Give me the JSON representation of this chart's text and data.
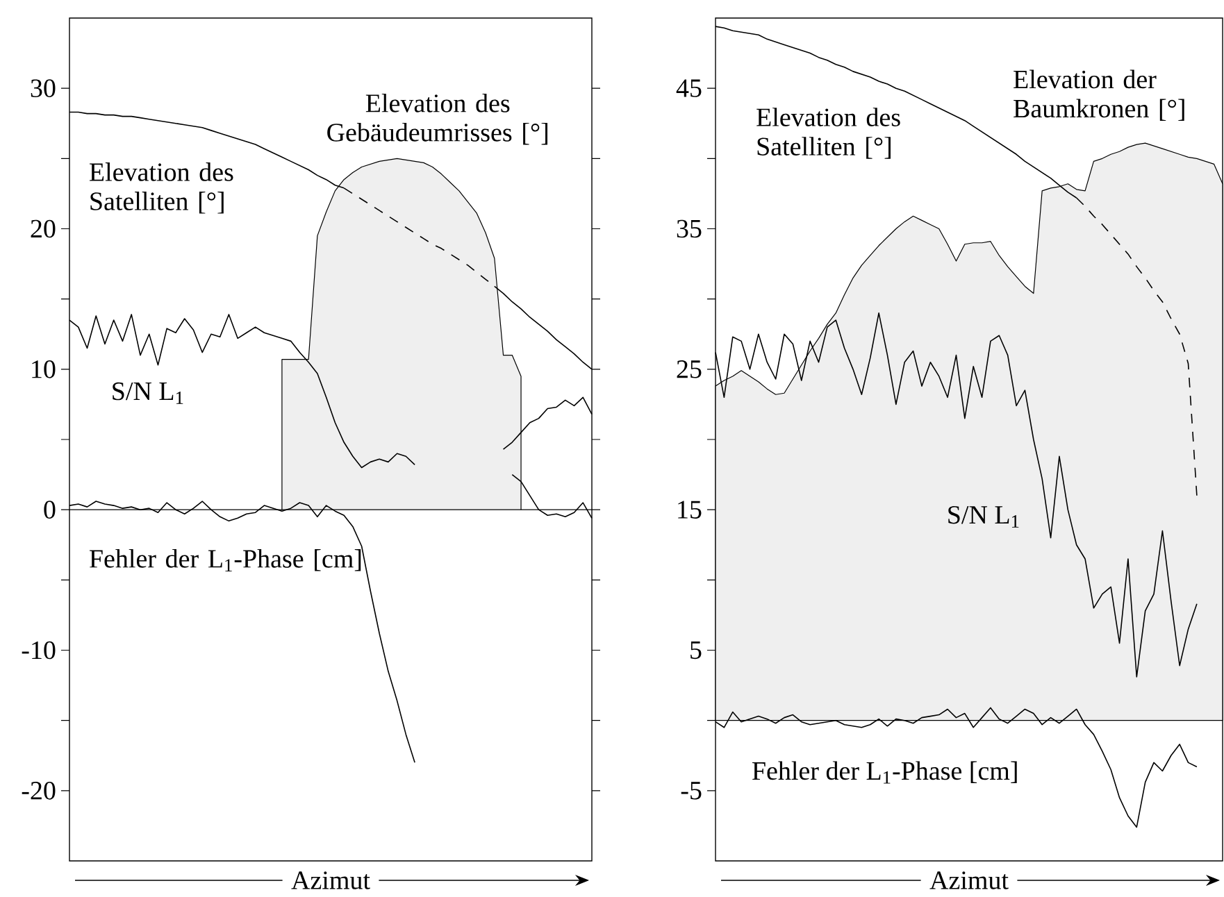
{
  "chart_data": [
    {
      "type": "line",
      "xlabel": "Azimut",
      "ylim": [
        -25,
        35
      ],
      "tick_labels": "y",
      "categories": [
        null,
        null,
        null,
        null,
        null,
        null,
        null,
        null,
        null,
        null,
        null,
        null,
        null,
        null,
        null,
        null,
        null,
        null,
        null,
        null,
        null,
        null,
        null,
        null,
        null,
        null,
        null,
        null,
        null,
        null,
        null,
        null,
        null,
        null,
        null,
        null,
        null,
        null,
        null,
        null,
        null,
        null,
        null,
        null,
        null,
        null,
        null,
        null,
        null,
        null,
        null,
        null,
        null,
        null,
        null,
        null,
        null,
        null,
        null,
        null
      ],
      "yticks": [
        -20,
        {
          "value": -15,
          "label": null
        },
        -10,
        {
          "value": -5,
          "label": null
        },
        0,
        {
          "value": 5,
          "label": null
        },
        10,
        {
          "value": 15,
          "label": null
        },
        20,
        {
          "value": 25,
          "label": null
        },
        30
      ],
      "ref_lines": [
        {
          "axis": "y",
          "value": 0,
          "color": "#000000"
        }
      ],
      "series": [
        {
          "type": "area",
          "name": "Elevation des Gebäudeumrisses [°]",
          "color": "#efefef",
          "values": [
            null,
            null,
            null,
            null,
            null,
            null,
            null,
            null,
            null,
            null,
            null,
            null,
            null,
            null,
            null,
            null,
            null,
            null,
            null,
            null,
            null,
            null,
            null,
            null,
            10.7,
            10.7,
            10.7,
            10.7,
            19.5,
            21.2,
            22.7,
            23.5,
            24.0,
            24.4,
            24.6,
            24.8,
            24.9,
            25.0,
            24.9,
            24.8,
            24.7,
            24.4,
            23.9,
            23.3,
            22.7,
            21.9,
            21.1,
            19.7,
            17.9,
            11.0,
            11.0,
            9.5,
            null,
            null,
            null,
            null,
            null,
            null,
            null,
            null
          ]
        },
        {
          "name": "Elevation des Satelliten [°]",
          "color": "#000000",
          "line_style": "solid",
          "values": [
            28.3,
            28.3,
            28.2,
            28.2,
            28.1,
            28.1,
            28.0,
            28.0,
            27.9,
            27.8,
            27.7,
            27.6,
            27.5,
            27.4,
            27.3,
            27.2,
            27.0,
            26.8,
            26.6,
            26.4,
            26.2,
            26.0,
            25.7,
            25.4,
            25.1,
            24.8,
            24.5,
            24.2,
            23.8,
            23.5,
            23.1,
            22.9,
            null,
            null,
            null,
            null,
            null,
            null,
            null,
            null,
            null,
            null,
            null,
            null,
            null,
            null,
            null,
            null,
            null,
            null,
            null,
            null,
            null,
            null,
            null,
            null,
            null,
            null,
            null,
            null
          ]
        },
        {
          "color": "#000000",
          "line_style": "dashed",
          "values": [
            null,
            null,
            null,
            null,
            null,
            null,
            null,
            null,
            null,
            null,
            null,
            null,
            null,
            null,
            null,
            null,
            null,
            null,
            null,
            null,
            null,
            null,
            null,
            null,
            null,
            null,
            null,
            null,
            null,
            null,
            null,
            22.9,
            22.5,
            22.1,
            21.7,
            21.3,
            20.9,
            20.5,
            20.1,
            19.7,
            19.3,
            18.9,
            18.6,
            18.2,
            17.8,
            17.4,
            16.9,
            16.4,
            15.9,
            null,
            null,
            null,
            null,
            null,
            null,
            null,
            null,
            null,
            null,
            null
          ]
        },
        {
          "color": "#000000",
          "line_style": "solid",
          "values": [
            null,
            null,
            null,
            null,
            null,
            null,
            null,
            null,
            null,
            null,
            null,
            null,
            null,
            null,
            null,
            null,
            null,
            null,
            null,
            null,
            null,
            null,
            null,
            null,
            null,
            null,
            null,
            null,
            null,
            null,
            null,
            null,
            null,
            null,
            null,
            null,
            null,
            null,
            null,
            null,
            null,
            null,
            null,
            null,
            null,
            null,
            null,
            null,
            15.9,
            15.4,
            14.8,
            14.3,
            13.7,
            13.2,
            12.7,
            12.1,
            11.6,
            11.1,
            10.5,
            10.0
          ]
        },
        {
          "name": "S/N L$_{1}$",
          "color": "#000000",
          "line_style": "solid",
          "values": [
            13.5,
            13.0,
            11.5,
            13.8,
            11.8,
            13.5,
            12.0,
            13.9,
            11.0,
            12.5,
            10.3,
            12.9,
            12.6,
            13.6,
            12.8,
            11.2,
            12.5,
            12.3,
            13.9,
            12.2,
            12.6,
            13.0,
            12.6,
            12.4,
            12.2,
            12.0,
            11.2,
            10.5,
            9.7,
            8.0,
            6.2,
            4.8,
            3.8,
            3.0,
            3.4,
            3.6,
            3.4,
            4.0,
            3.8,
            3.2,
            null,
            null,
            null,
            null,
            null,
            null,
            null,
            null,
            null,
            null,
            null,
            null,
            null,
            null,
            null,
            null,
            null,
            null,
            null,
            null
          ]
        },
        {
          "color": "#000000",
          "line_style": "solid",
          "values": [
            null,
            null,
            null,
            null,
            null,
            null,
            null,
            null,
            null,
            null,
            null,
            null,
            null,
            null,
            null,
            null,
            null,
            null,
            null,
            null,
            null,
            null,
            null,
            null,
            null,
            null,
            null,
            null,
            null,
            null,
            null,
            null,
            null,
            null,
            null,
            null,
            null,
            null,
            null,
            null,
            null,
            null,
            null,
            null,
            null,
            null,
            null,
            null,
            null,
            4.3,
            4.8,
            5.5,
            6.2,
            6.5,
            7.2,
            7.3,
            7.8,
            7.4,
            8.0,
            6.8
          ]
        },
        {
          "name": "Fehler der L$_{1}$-Phase [cm]",
          "color": "#000000",
          "line_style": "solid",
          "values": [
            0.3,
            0.4,
            0.2,
            0.6,
            0.4,
            0.3,
            0.1,
            0.2,
            0.0,
            0.1,
            -0.2,
            0.5,
            0.0,
            -0.3,
            0.1,
            0.6,
            0.0,
            -0.5,
            -0.8,
            -0.6,
            -0.3,
            -0.2,
            0.3,
            0.1,
            -0.1,
            0.1,
            0.5,
            0.3,
            -0.5,
            0.3,
            -0.1,
            -0.4,
            -1.2,
            -2.6,
            -5.8,
            -8.8,
            -11.5,
            -13.6,
            -16.0,
            -18.0,
            null,
            null,
            null,
            null,
            null,
            null,
            null,
            null,
            null,
            null,
            null,
            null,
            null,
            null,
            null,
            null,
            null,
            null,
            null,
            null
          ]
        },
        {
          "color": "#000000",
          "line_style": "solid",
          "values": [
            null,
            null,
            null,
            null,
            null,
            null,
            null,
            null,
            null,
            null,
            null,
            null,
            null,
            null,
            null,
            null,
            null,
            null,
            null,
            null,
            null,
            null,
            null,
            null,
            null,
            null,
            null,
            null,
            null,
            null,
            null,
            null,
            null,
            null,
            null,
            null,
            null,
            null,
            null,
            null,
            null,
            null,
            null,
            null,
            null,
            null,
            null,
            null,
            null,
            null,
            2.5,
            2.0,
            1.0,
            0.0,
            -0.4,
            -0.3,
            -0.5,
            -0.2,
            0.5,
            -0.6
          ]
        }
      ]
    },
    {
      "type": "line",
      "xlabel": "Azimut",
      "ylim": [
        -10,
        50
      ],
      "tick_labels": "y",
      "categories": [
        null,
        null,
        null,
        null,
        null,
        null,
        null,
        null,
        null,
        null,
        null,
        null,
        null,
        null,
        null,
        null,
        null,
        null,
        null,
        null,
        null,
        null,
        null,
        null,
        null,
        null,
        null,
        null,
        null,
        null,
        null,
        null,
        null,
        null,
        null,
        null,
        null,
        null,
        null,
        null,
        null,
        null,
        null,
        null,
        null,
        null,
        null,
        null,
        null,
        null,
        null,
        null,
        null,
        null,
        null,
        null,
        null,
        null,
        null,
        null
      ],
      "yticks": [
        -5,
        {
          "value": 0,
          "label": null
        },
        5,
        {
          "value": 10,
          "label": null
        },
        15,
        {
          "value": 20,
          "label": null
        },
        25,
        {
          "value": 30,
          "label": null
        },
        35,
        {
          "value": 40,
          "label": null
        },
        45
      ],
      "ref_lines": [
        {
          "axis": "y",
          "value": 0,
          "color": "#000000"
        }
      ],
      "series": [
        {
          "type": "area",
          "name": "Elevation der Baumkronen [°]",
          "color": "#efefef",
          "values": [
            23.8,
            24.2,
            24.5,
            24.9,
            24.5,
            24.1,
            23.6,
            23.2,
            23.3,
            24.3,
            25.3,
            26.3,
            27.2,
            28.2,
            29.0,
            30.3,
            31.5,
            32.4,
            33.1,
            33.8,
            34.4,
            35.0,
            35.5,
            35.9,
            35.6,
            35.3,
            35.0,
            33.9,
            32.7,
            33.9,
            34.0,
            34.0,
            34.1,
            33.1,
            32.3,
            31.6,
            30.9,
            30.4,
            37.7,
            37.9,
            38.0,
            38.2,
            37.8,
            37.7,
            39.8,
            40.0,
            40.3,
            40.5,
            40.8,
            41.0,
            41.1,
            40.9,
            40.7,
            40.5,
            40.3,
            40.1,
            40.0,
            39.8,
            39.6,
            38.2
          ]
        },
        {
          "name": "Elevation des Satelliten [°]",
          "color": "#000000",
          "line_style": "solid",
          "values": [
            49.4,
            49.3,
            49.1,
            49.0,
            48.9,
            48.8,
            48.5,
            48.3,
            48.1,
            47.9,
            47.7,
            47.5,
            47.2,
            47.0,
            46.7,
            46.5,
            46.2,
            46.0,
            45.8,
            45.5,
            45.3,
            45.0,
            44.8,
            44.5,
            44.2,
            43.9,
            43.6,
            43.3,
            43.0,
            42.7,
            42.3,
            41.9,
            41.5,
            41.1,
            40.7,
            40.3,
            39.8,
            39.4,
            39.0,
            38.6,
            38.1,
            37.6,
            37.2,
            null,
            null,
            null,
            null,
            null,
            null,
            null,
            null,
            null,
            null,
            null,
            null,
            null,
            null,
            null,
            null,
            null
          ]
        },
        {
          "color": "#000000",
          "line_style": "dashed",
          "values": [
            null,
            null,
            null,
            null,
            null,
            null,
            null,
            null,
            null,
            null,
            null,
            null,
            null,
            null,
            null,
            null,
            null,
            null,
            null,
            null,
            null,
            null,
            null,
            null,
            null,
            null,
            null,
            null,
            null,
            null,
            null,
            null,
            null,
            null,
            null,
            null,
            null,
            null,
            null,
            null,
            null,
            null,
            37.2,
            36.6,
            35.9,
            35.3,
            34.6,
            33.9,
            33.2,
            32.3,
            31.5,
            30.6,
            29.8,
            28.6,
            27.5,
            25.4,
            16.0,
            null,
            null,
            null
          ]
        },
        {
          "name": "S/N L$_{1}$",
          "color": "#000000",
          "line_style": "solid",
          "values": [
            26.2,
            23.0,
            27.3,
            27.0,
            25.0,
            27.5,
            25.5,
            24.3,
            27.5,
            26.8,
            24.2,
            27.0,
            25.5,
            28.0,
            28.5,
            26.5,
            25.0,
            23.2,
            25.8,
            29.0,
            26.0,
            22.5,
            25.5,
            26.3,
            23.8,
            25.5,
            24.5,
            23.0,
            26.0,
            21.5,
            25.2,
            23.0,
            27.0,
            27.4,
            26.0,
            22.4,
            23.5,
            20.0,
            17.2,
            13.0,
            18.8,
            15.0,
            12.5,
            11.5,
            8.0,
            9.0,
            9.5,
            5.5,
            11.5,
            3.1,
            7.8,
            9.0,
            13.5,
            8.5,
            3.9,
            6.5,
            8.3,
            null,
            null,
            null
          ]
        },
        {
          "name": "Fehler der L$_{1}$-Phase [cm]",
          "color": "#000000",
          "line_style": "solid",
          "values": [
            -0.1,
            -0.5,
            0.6,
            -0.1,
            0.1,
            0.3,
            0.1,
            -0.2,
            0.2,
            0.4,
            -0.1,
            -0.3,
            -0.2,
            -0.1,
            0.0,
            -0.3,
            -0.4,
            -0.5,
            -0.3,
            0.1,
            -0.4,
            0.1,
            0.0,
            -0.2,
            0.2,
            0.3,
            0.4,
            0.8,
            0.2,
            0.5,
            -0.5,
            0.2,
            0.9,
            0.1,
            -0.2,
            0.3,
            0.8,
            0.5,
            -0.3,
            0.2,
            -0.2,
            0.3,
            0.8,
            -0.3,
            -1.0,
            -2.2,
            -3.5,
            -5.5,
            -6.8,
            -7.6,
            -4.4,
            -3.0,
            -3.6,
            -2.5,
            -1.7,
            -3.0,
            -3.3,
            null,
            null,
            null
          ]
        }
      ]
    }
  ]
}
